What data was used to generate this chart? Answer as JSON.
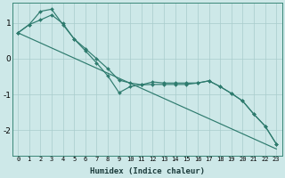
{
  "xlabel": "Humidex (Indice chaleur)",
  "bg_color": "#cde8e8",
  "grid_color": "#a8cccc",
  "line_color": "#2e7b6e",
  "xlim": [
    -0.5,
    23.5
  ],
  "ylim": [
    -2.7,
    1.55
  ],
  "xticks": [
    0,
    1,
    2,
    3,
    4,
    5,
    6,
    7,
    8,
    9,
    10,
    11,
    12,
    13,
    14,
    15,
    16,
    17,
    18,
    19,
    20,
    21,
    22,
    23
  ],
  "yticks": [
    -2,
    -1,
    0,
    1
  ],
  "line1_x": [
    0,
    1,
    2,
    3,
    4,
    5,
    6,
    7,
    8,
    9,
    10,
    11,
    12,
    13,
    14,
    15,
    16,
    17,
    18,
    19,
    20,
    21,
    22,
    23
  ],
  "line1_y": [
    0.72,
    0.95,
    1.08,
    1.22,
    0.98,
    0.55,
    0.28,
    0.0,
    -0.28,
    -0.6,
    -0.68,
    -0.73,
    -0.72,
    -0.72,
    -0.72,
    -0.72,
    -0.68,
    -0.62,
    -0.78,
    -0.97,
    -1.18,
    -1.55,
    -1.88,
    -2.38
  ],
  "line2_x": [
    0,
    1,
    2,
    3,
    4,
    5,
    6,
    7,
    8,
    9,
    10,
    11,
    12,
    13,
    14,
    15,
    16,
    17,
    18,
    19,
    20,
    21,
    22,
    23
  ],
  "line2_y": [
    0.72,
    0.95,
    1.32,
    1.38,
    0.95,
    0.55,
    0.22,
    -0.12,
    -0.48,
    -0.95,
    -0.78,
    -0.73,
    -0.65,
    -0.68,
    -0.68,
    -0.68,
    -0.68,
    -0.62,
    -0.78,
    -0.97,
    -1.18,
    -1.55,
    -1.88,
    -2.38
  ],
  "line3_x": [
    0,
    23
  ],
  "line3_y": [
    0.72,
    -2.52
  ]
}
